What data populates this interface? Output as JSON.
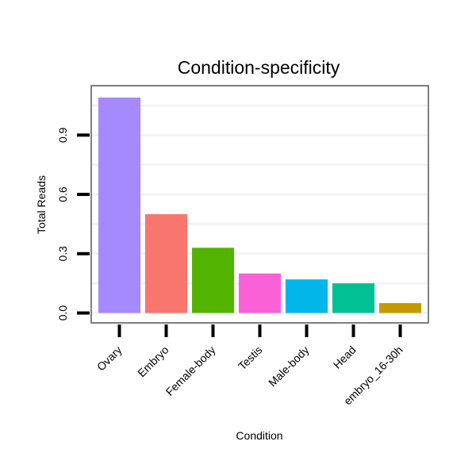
{
  "chart_data": {
    "type": "bar",
    "title": "Condition-specificity",
    "xlabel": "Condition",
    "ylabel": "Total Reads",
    "categories": [
      "Ovary",
      "Embryo",
      "Female-body",
      "Testis",
      "Male-body",
      "Head",
      "embryo_16-30h"
    ],
    "values": [
      1.09,
      0.5,
      0.33,
      0.2,
      0.17,
      0.15,
      0.05
    ],
    "colors": [
      "#A58AFF",
      "#F8766D",
      "#53B400",
      "#FB61D7",
      "#00B6EB",
      "#00C094",
      "#C49A00"
    ],
    "yticks": [
      0.0,
      0.3,
      0.6,
      0.9
    ],
    "ytick_labels": [
      "0.0",
      "0.3",
      "0.6",
      "0.9"
    ],
    "ylim": [
      -0.05,
      1.15
    ],
    "grid": true,
    "legend": "none"
  }
}
